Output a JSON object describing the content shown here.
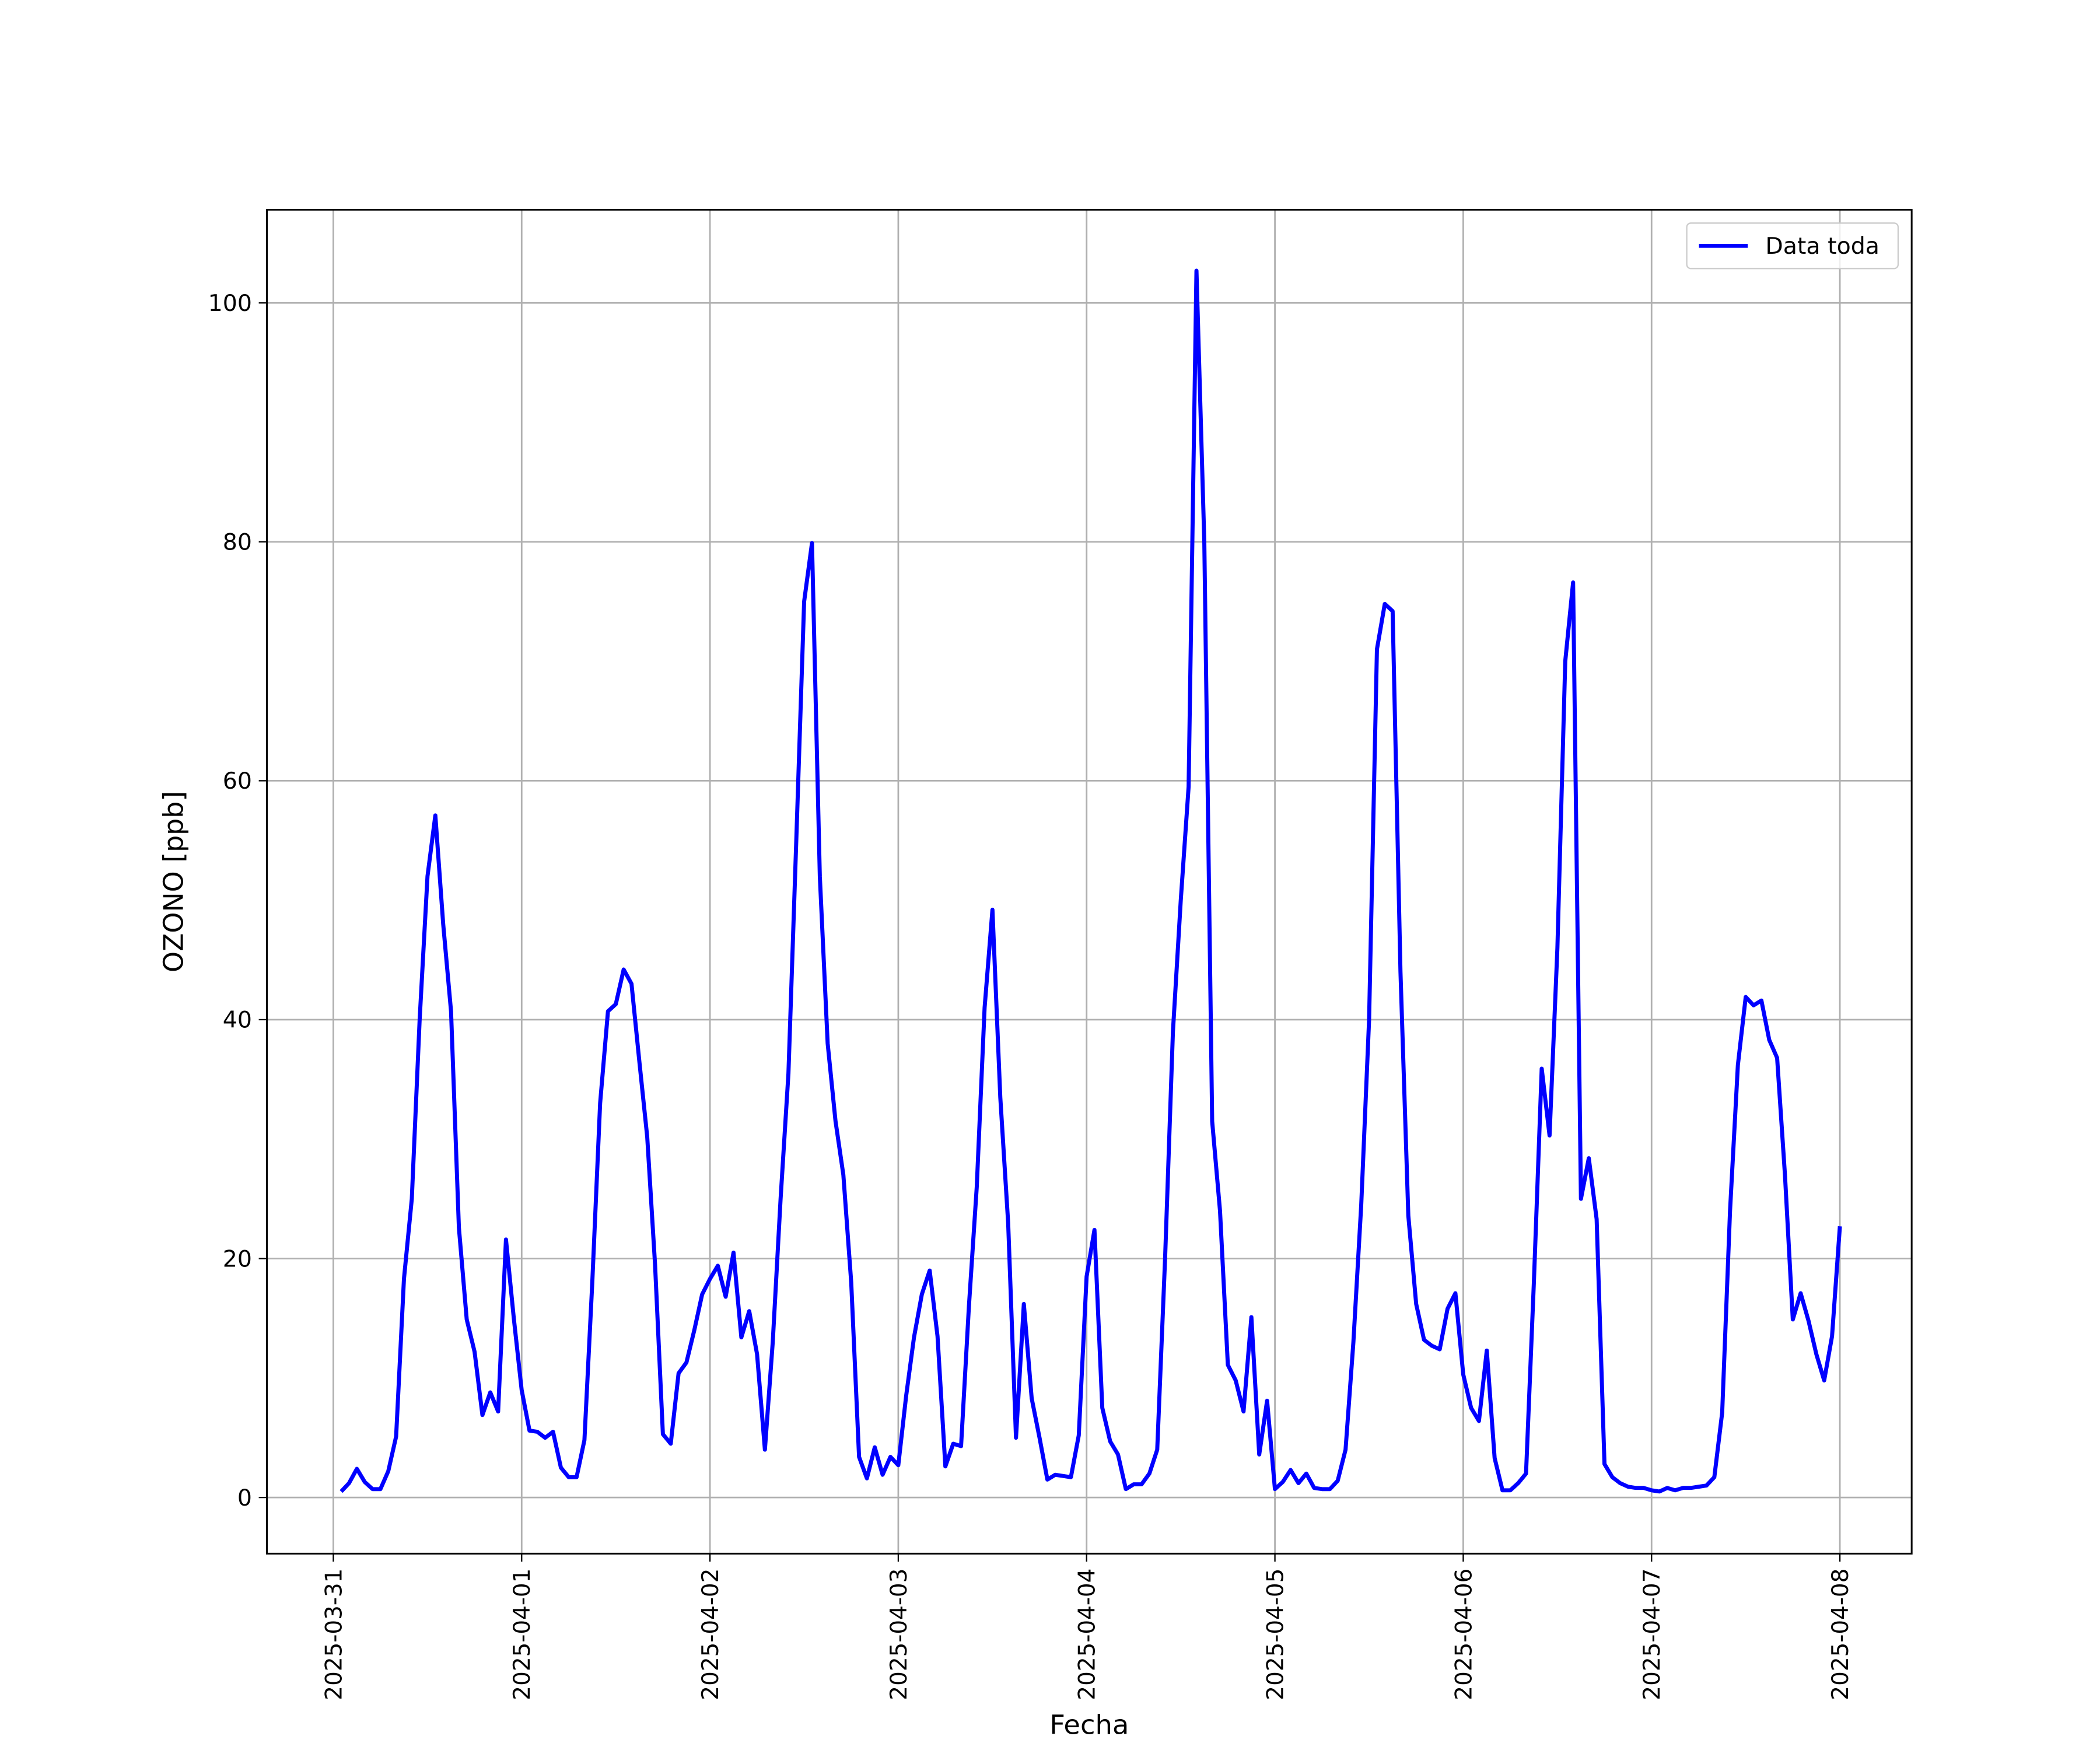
{
  "chart_data": {
    "type": "line",
    "xlabel": "Fecha",
    "ylabel": "OZONO [ppb]",
    "x": [
      "2025-03-31 01:00",
      "2025-03-31 02:00",
      "2025-03-31 03:00",
      "2025-03-31 04:00",
      "2025-03-31 05:00",
      "2025-03-31 06:00",
      "2025-03-31 07:00",
      "2025-03-31 08:00",
      "2025-03-31 09:00",
      "2025-03-31 10:00",
      "2025-03-31 11:00",
      "2025-03-31 12:00",
      "2025-03-31 13:00",
      "2025-03-31 14:00",
      "2025-03-31 15:00",
      "2025-03-31 16:00",
      "2025-03-31 17:00",
      "2025-03-31 18:00",
      "2025-03-31 19:00",
      "2025-03-31 20:00",
      "2025-03-31 21:00",
      "2025-03-31 22:00",
      "2025-03-31 23:00",
      "2025-04-01 00:00",
      "2025-04-01 01:00",
      "2025-04-01 02:00",
      "2025-04-01 03:00",
      "2025-04-01 04:00",
      "2025-04-01 05:00",
      "2025-04-01 06:00",
      "2025-04-01 07:00",
      "2025-04-01 08:00",
      "2025-04-01 09:00",
      "2025-04-01 10:00",
      "2025-04-01 11:00",
      "2025-04-01 12:00",
      "2025-04-01 13:00",
      "2025-04-01 14:00",
      "2025-04-01 15:00",
      "2025-04-01 16:00",
      "2025-04-01 17:00",
      "2025-04-01 18:00",
      "2025-04-01 19:00",
      "2025-04-01 20:00",
      "2025-04-01 21:00",
      "2025-04-01 22:00",
      "2025-04-01 23:00",
      "2025-04-02 00:00",
      "2025-04-02 01:00",
      "2025-04-02 02:00",
      "2025-04-02 03:00",
      "2025-04-02 04:00",
      "2025-04-02 05:00",
      "2025-04-02 06:00",
      "2025-04-02 07:00",
      "2025-04-02 08:00",
      "2025-04-02 09:00",
      "2025-04-02 10:00",
      "2025-04-02 11:00",
      "2025-04-02 12:00",
      "2025-04-02 13:00",
      "2025-04-02 14:00",
      "2025-04-02 15:00",
      "2025-04-02 16:00",
      "2025-04-02 17:00",
      "2025-04-02 18:00",
      "2025-04-02 19:00",
      "2025-04-02 20:00",
      "2025-04-02 21:00",
      "2025-04-02 22:00",
      "2025-04-02 23:00",
      "2025-04-03 00:00",
      "2025-04-03 01:00",
      "2025-04-03 02:00",
      "2025-04-03 03:00",
      "2025-04-03 04:00",
      "2025-04-03 05:00",
      "2025-04-03 06:00",
      "2025-04-03 07:00",
      "2025-04-03 08:00",
      "2025-04-03 09:00",
      "2025-04-03 10:00",
      "2025-04-03 11:00",
      "2025-04-03 12:00",
      "2025-04-03 13:00",
      "2025-04-03 14:00",
      "2025-04-03 15:00",
      "2025-04-03 16:00",
      "2025-04-03 17:00",
      "2025-04-03 18:00",
      "2025-04-03 19:00",
      "2025-04-03 20:00",
      "2025-04-03 21:00",
      "2025-04-03 22:00",
      "2025-04-03 23:00",
      "2025-04-04 00:00",
      "2025-04-04 01:00",
      "2025-04-04 02:00",
      "2025-04-04 03:00",
      "2025-04-04 04:00",
      "2025-04-04 05:00",
      "2025-04-04 06:00",
      "2025-04-04 07:00",
      "2025-04-04 08:00",
      "2025-04-04 09:00",
      "2025-04-04 10:00",
      "2025-04-04 11:00",
      "2025-04-04 12:00",
      "2025-04-04 13:00",
      "2025-04-04 14:00",
      "2025-04-04 15:00",
      "2025-04-04 16:00",
      "2025-04-04 17:00",
      "2025-04-04 18:00",
      "2025-04-04 19:00",
      "2025-04-04 20:00",
      "2025-04-04 21:00",
      "2025-04-04 22:00",
      "2025-04-04 23:00",
      "2025-04-05 00:00",
      "2025-04-05 01:00",
      "2025-04-05 02:00",
      "2025-04-05 03:00",
      "2025-04-05 04:00",
      "2025-04-05 05:00",
      "2025-04-05 06:00",
      "2025-04-05 07:00",
      "2025-04-05 08:00",
      "2025-04-05 09:00",
      "2025-04-05 10:00",
      "2025-04-05 11:00",
      "2025-04-05 12:00",
      "2025-04-05 13:00",
      "2025-04-05 14:00",
      "2025-04-05 15:00",
      "2025-04-05 16:00",
      "2025-04-05 17:00",
      "2025-04-05 18:00",
      "2025-04-05 19:00",
      "2025-04-05 20:00",
      "2025-04-05 21:00",
      "2025-04-05 22:00",
      "2025-04-05 23:00",
      "2025-04-06 00:00",
      "2025-04-06 01:00",
      "2025-04-06 02:00",
      "2025-04-06 03:00",
      "2025-04-06 04:00",
      "2025-04-06 05:00",
      "2025-04-06 06:00",
      "2025-04-06 07:00",
      "2025-04-06 08:00",
      "2025-04-06 09:00",
      "2025-04-06 10:00",
      "2025-04-06 11:00",
      "2025-04-06 12:00",
      "2025-04-06 13:00",
      "2025-04-06 14:00",
      "2025-04-06 15:00",
      "2025-04-06 16:00",
      "2025-04-06 17:00",
      "2025-04-06 18:00",
      "2025-04-06 19:00",
      "2025-04-06 20:00",
      "2025-04-06 21:00",
      "2025-04-06 22:00",
      "2025-04-06 23:00",
      "2025-04-07 00:00",
      "2025-04-07 01:00",
      "2025-04-07 02:00",
      "2025-04-07 03:00",
      "2025-04-07 04:00",
      "2025-04-07 05:00",
      "2025-04-07 06:00",
      "2025-04-07 07:00",
      "2025-04-07 08:00",
      "2025-04-07 09:00",
      "2025-04-07 10:00",
      "2025-04-07 11:00",
      "2025-04-07 12:00",
      "2025-04-07 13:00",
      "2025-04-07 14:00",
      "2025-04-07 15:00",
      "2025-04-07 16:00",
      "2025-04-07 17:00",
      "2025-04-07 18:00",
      "2025-04-07 19:00",
      "2025-04-07 20:00",
      "2025-04-07 21:00",
      "2025-04-07 22:00",
      "2025-04-07 23:00",
      "2025-04-08 00:00"
    ],
    "series": [
      {
        "name": "Data toda",
        "color": "#0000ff",
        "values": [
          0.5,
          1.2,
          2.4,
          1.3,
          0.7,
          0.7,
          2.2,
          5.1,
          18.3,
          25,
          40,
          52,
          57.1,
          48,
          40.7,
          22.6,
          14.9,
          12.2,
          6.9,
          8.8,
          7.2,
          21.6,
          15,
          9,
          5.6,
          5.5,
          5,
          5.5,
          2.5,
          1.7,
          1.7,
          4.8,
          18,
          33,
          40.7,
          41.3,
          44.2,
          43,
          36.5,
          30.2,
          19.5,
          5.3,
          4.5,
          10.4,
          11.3,
          14,
          17,
          18.3,
          19.4,
          16.8,
          20.5,
          13.4,
          15.6,
          12,
          4,
          13,
          25,
          35.5,
          55,
          75,
          79.9,
          52,
          38,
          31.5,
          27,
          18,
          3.4,
          1.6,
          4.2,
          1.9,
          3.4,
          2.7,
          8.5,
          13.4,
          17,
          19,
          13.5,
          2.6,
          4.5,
          4.3,
          16,
          26,
          41,
          49.2,
          33.5,
          23,
          5,
          16.2,
          8.3,
          5,
          1.5,
          1.9,
          1.8,
          1.7,
          5.2,
          18.5,
          22.4,
          7.5,
          4.7,
          3.6,
          0.7,
          1.1,
          1.1,
          2,
          4,
          20,
          39,
          50,
          59.5,
          102.7,
          80,
          31.5,
          24,
          11.1,
          9.8,
          7.2,
          15.1,
          3.6,
          8.1,
          0.7,
          1.3,
          2.3,
          1.2,
          2,
          0.8,
          0.7,
          0.7,
          1.4,
          4,
          13,
          24.5,
          40,
          71,
          74.8,
          74.2,
          44,
          23.6,
          16.2,
          13.2,
          12.7,
          12.4,
          15.8,
          17.1,
          10.3,
          7.5,
          6.4,
          12.3,
          3.3,
          0.6,
          0.6,
          1.2,
          2,
          18,
          35.9,
          30.3,
          46,
          70,
          76.6,
          25,
          28.4,
          23.3,
          2.8,
          1.7,
          1.2,
          0.9,
          0.8,
          0.8,
          0.6,
          0.5,
          0.8,
          0.6,
          0.8,
          0.8,
          0.9,
          1,
          1.7,
          7.1,
          24,
          36.2,
          41.9,
          41.2,
          41.6,
          38.3,
          36.8,
          27,
          14.9,
          17.1,
          14.8,
          12,
          9.8,
          13.5,
          22.7
        ]
      }
    ],
    "xlim": [
      "2025-03-30 15:32",
      "2025-04-08 09:09"
    ],
    "xticks": [
      "2025-03-31",
      "2025-04-01",
      "2025-04-02",
      "2025-04-03",
      "2025-04-04",
      "2025-04-05",
      "2025-04-06",
      "2025-04-07",
      "2025-04-08"
    ],
    "ylim": [
      -4.7,
      107.8
    ],
    "yticks": [
      0,
      20,
      40,
      60,
      80,
      100
    ],
    "grid": true,
    "legend": "upper right"
  }
}
